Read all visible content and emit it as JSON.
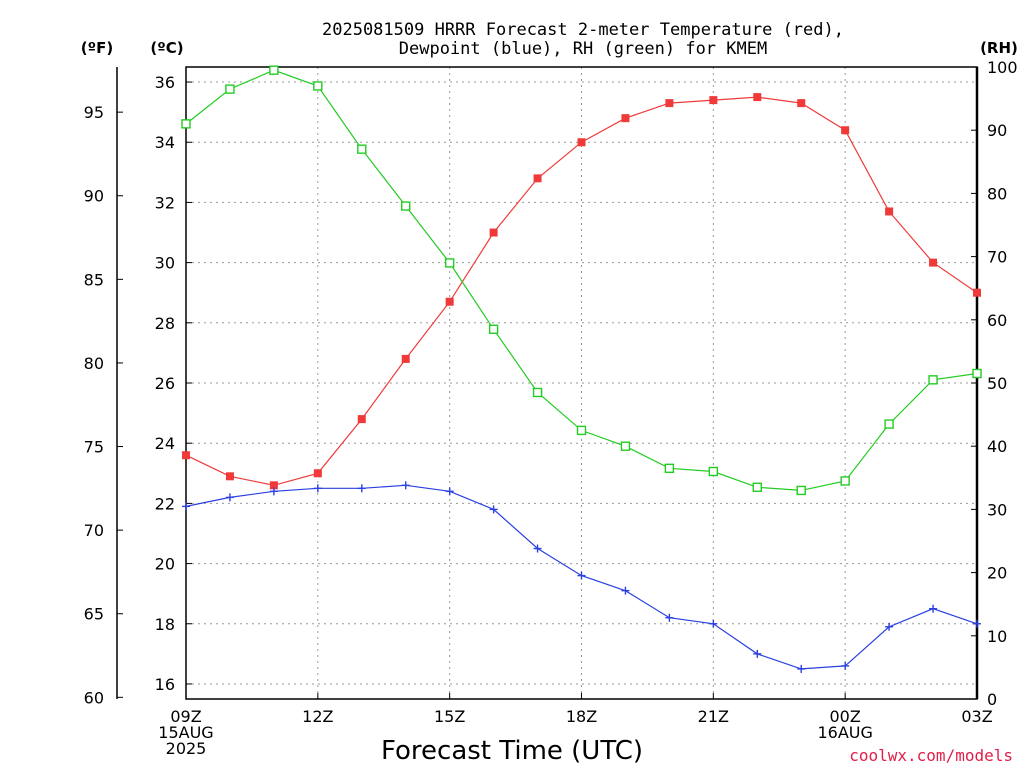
{
  "chart_data": {
    "type": "line",
    "title_lines": [
      "2025081509 HRRR Forecast 2-meter Temperature (red),",
      "Dewpoint (blue), RH (green) for KMEM"
    ],
    "xlabel": "Forecast Time (UTC)",
    "units": {
      "fahrenheit": "(ºF)",
      "celsius": "(ºC)",
      "rh": "(RH)"
    },
    "x_hours": [
      0,
      1,
      2,
      3,
      4,
      5,
      6,
      7,
      8,
      9,
      10,
      11,
      12,
      13,
      14,
      15,
      16,
      17,
      18
    ],
    "x_ticks": [
      {
        "hour": 0,
        "lines": [
          "09Z",
          "15AUG",
          "2025"
        ]
      },
      {
        "hour": 3,
        "lines": [
          "12Z"
        ]
      },
      {
        "hour": 6,
        "lines": [
          "15Z"
        ]
      },
      {
        "hour": 9,
        "lines": [
          "18Z"
        ]
      },
      {
        "hour": 12,
        "lines": [
          "21Z"
        ]
      },
      {
        "hour": 15,
        "lines": [
          "00Z",
          "16AUG"
        ]
      },
      {
        "hour": 18,
        "lines": [
          "03Z"
        ]
      }
    ],
    "celsius_axis": {
      "range": [
        15.5,
        36.5
      ],
      "ticks": [
        16,
        18,
        20,
        22,
        24,
        26,
        28,
        30,
        32,
        34,
        36
      ]
    },
    "fahrenheit_ticks": [
      60,
      65,
      70,
      75,
      80,
      85,
      90,
      95
    ],
    "rh_axis": {
      "range": [
        0,
        100
      ],
      "ticks": [
        0,
        10,
        20,
        30,
        40,
        50,
        60,
        70,
        80,
        90,
        100
      ]
    },
    "series": [
      {
        "name": "Temperature",
        "color": "#f03a3a",
        "axis": "celsius",
        "marker": "filled-square",
        "values": [
          23.6,
          22.9,
          22.6,
          23.0,
          24.8,
          26.8,
          28.7,
          31.0,
          32.8,
          34.0,
          34.8,
          35.3,
          35.4,
          35.5,
          35.3,
          34.4,
          31.7,
          30.0,
          29.0
        ]
      },
      {
        "name": "Dewpoint",
        "color": "#2a40e0",
        "axis": "celsius",
        "marker": "plus",
        "values": [
          21.9,
          22.2,
          22.4,
          22.5,
          22.5,
          22.6,
          22.4,
          21.8,
          20.5,
          19.6,
          19.1,
          18.2,
          18.0,
          17.0,
          16.5,
          16.6,
          17.9,
          18.5,
          18.0
        ]
      },
      {
        "name": "RH",
        "color": "#22cc22",
        "axis": "rh",
        "marker": "open-square",
        "values": [
          91,
          96.5,
          99.5,
          97,
          87,
          78,
          69,
          58.5,
          48.5,
          42.5,
          40,
          36.5,
          36,
          33.5,
          33,
          34.5,
          43.5,
          50.5,
          51.5
        ]
      }
    ],
    "credit": "coolwx.com/models"
  }
}
